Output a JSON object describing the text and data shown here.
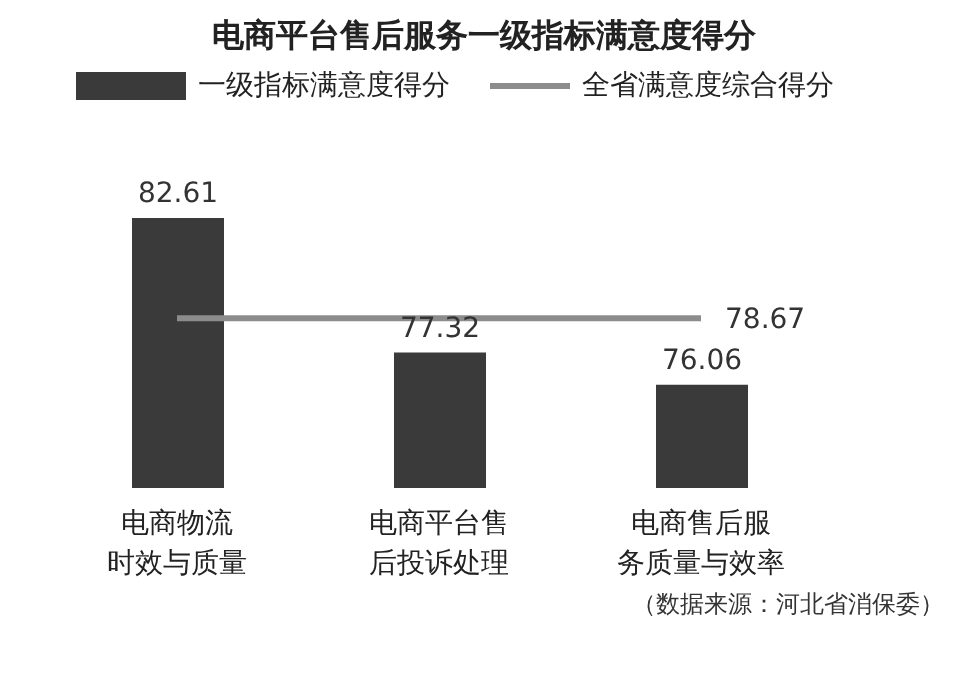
{
  "chart_data": {
    "type": "bar",
    "title": "电商平台售后服务一级指标满意度得分",
    "categories": [
      "电商物流时效与质量",
      "电商平台售后投诉处理",
      "电商售后服务质量与效率"
    ],
    "series": [
      {
        "name": "一级指标满意度得分",
        "color": "#3a3a3a",
        "values": [
          82.61,
          77.32,
          76.06
        ],
        "value_labels": [
          "82.61",
          "77.32",
          "76.06"
        ]
      },
      {
        "name": "全省满意度综合得分",
        "type": "line",
        "color": "#8c8c8c",
        "values": [
          78.67,
          78.67,
          78.67
        ],
        "value_labels": [
          null,
          null,
          "78.67"
        ]
      }
    ],
    "ylim": [
      72,
      82.61
    ],
    "tick_labels": "x",
    "legend": "top",
    "grid": false,
    "marker": "none",
    "line_style": "solid",
    "annotations": [
      "（数据来源：河北省消保委）"
    ]
  }
}
